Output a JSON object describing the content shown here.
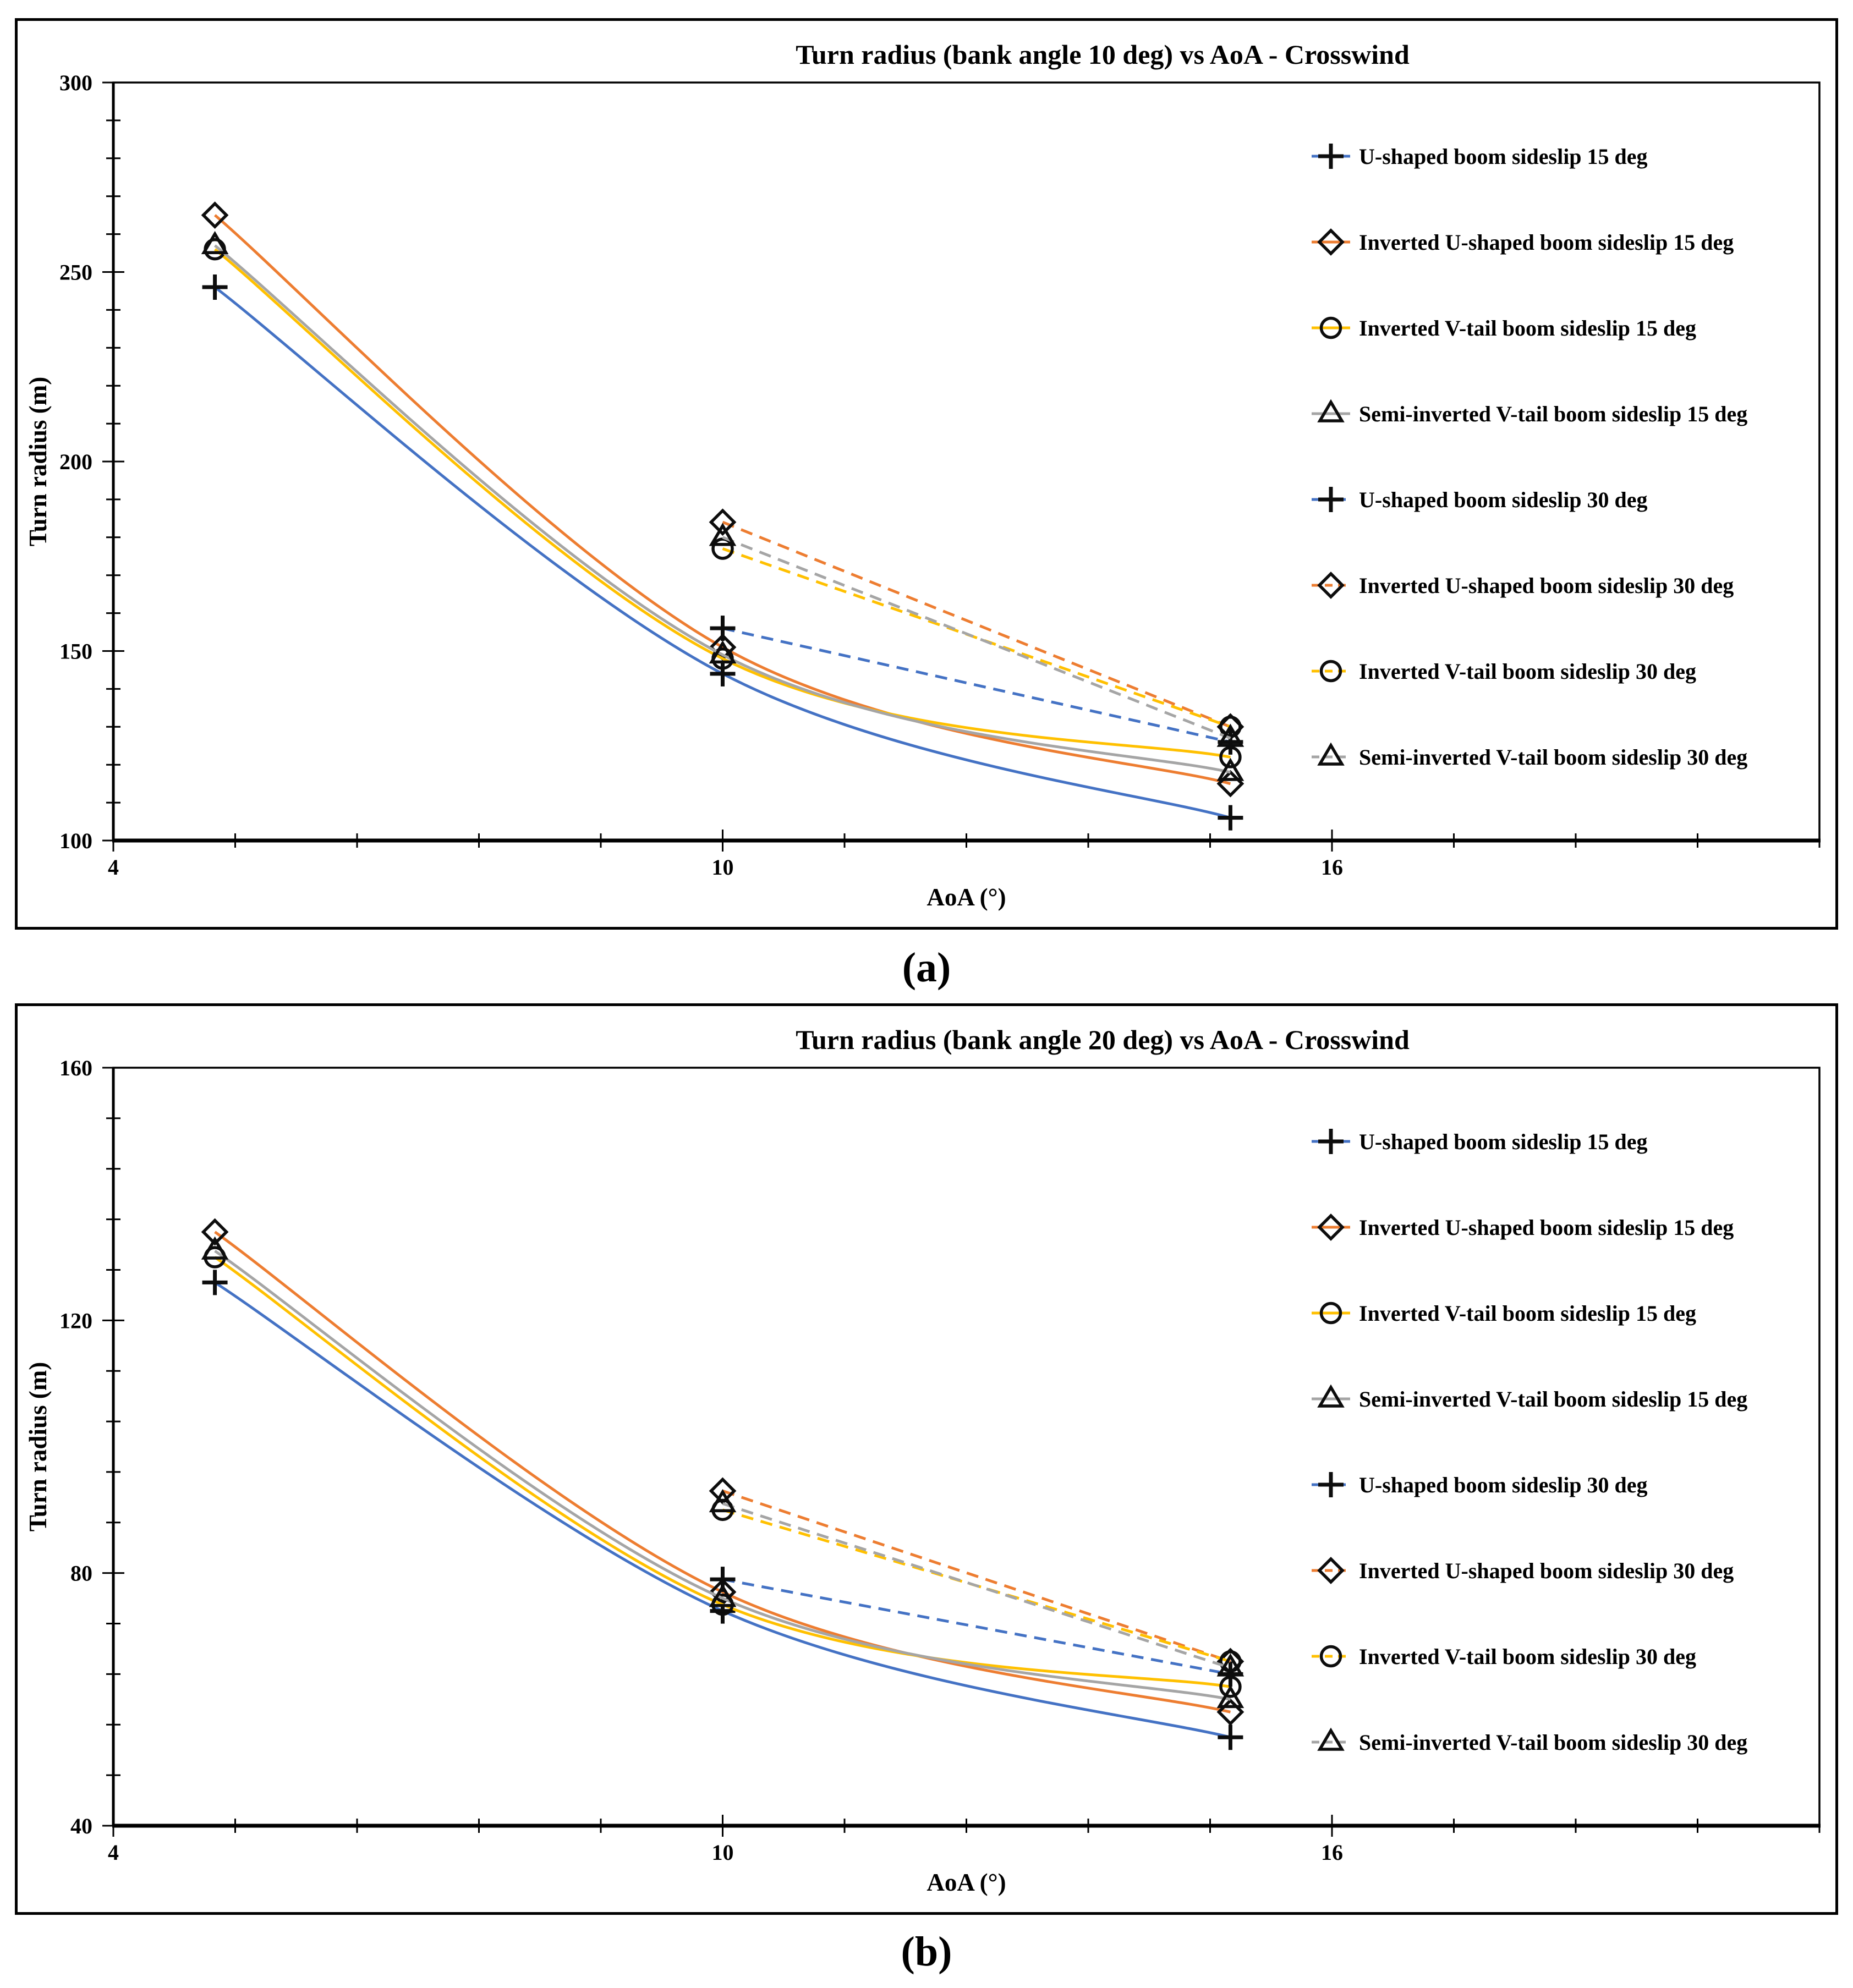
{
  "captions": {
    "a": "(a)",
    "b": "(b)"
  },
  "palette": {
    "blue": "#4472C4",
    "orange": "#ED7D31",
    "yellow": "#FFC000",
    "gray": "#A5A5A5",
    "marker_black": "#0d0d0d"
  },
  "chart_data": [
    {
      "type": "line",
      "title": "Turn radius (bank angle 10 deg) vs AoA - Crosswind",
      "xlabel": "AoA (°)",
      "ylabel": "Turn radius (m)",
      "xlim": [
        4,
        20.8
      ],
      "ylim": [
        100,
        300
      ],
      "x_major_ticks": [
        4,
        10,
        16
      ],
      "x_minor_step": 1.2,
      "y_major_step": 50,
      "y_minor_step": 10,
      "grid": false,
      "legend_position": "right-inside",
      "series": [
        {
          "name": "U-shaped boom sideslip 15 deg",
          "color": "#4472C4",
          "line": "solid",
          "marker": "plus",
          "x": [
            5,
            10,
            15
          ],
          "y": [
            246,
            144,
            106
          ]
        },
        {
          "name": "Inverted U-shaped boom sideslip 15 deg",
          "color": "#ED7D31",
          "line": "solid",
          "marker": "diamond",
          "x": [
            5,
            10,
            15
          ],
          "y": [
            265,
            151,
            115
          ]
        },
        {
          "name": "Inverted V-tail boom sideslip 15 deg",
          "color": "#FFC000",
          "line": "solid",
          "marker": "circle",
          "x": [
            5,
            10,
            15
          ],
          "y": [
            256,
            148,
            122
          ]
        },
        {
          "name": "Semi-inverted V-tail boom sideslip 15 deg",
          "color": "#A5A5A5",
          "line": "solid",
          "marker": "triangle",
          "x": [
            5,
            10,
            15
          ],
          "y": [
            257,
            149,
            118
          ]
        },
        {
          "name": "U-shaped boom sideslip 30 deg",
          "color": "#4472C4",
          "line": "dashed",
          "marker": "plus",
          "x": [
            10,
            15
          ],
          "y": [
            156,
            126
          ]
        },
        {
          "name": "Inverted U-shaped boom sideslip 30 deg",
          "color": "#ED7D31",
          "line": "dashed",
          "marker": "diamond",
          "x": [
            10,
            15
          ],
          "y": [
            184,
            130
          ]
        },
        {
          "name": "Inverted V-tail boom sideslip 30 deg",
          "color": "#FFC000",
          "line": "dashed",
          "marker": "circle",
          "x": [
            10,
            15
          ],
          "y": [
            177,
            130
          ]
        },
        {
          "name": "Semi-inverted V-tail boom sideslip 30 deg",
          "color": "#A5A5A5",
          "line": "dashed",
          "marker": "triangle",
          "x": [
            10,
            15
          ],
          "y": [
            180,
            127
          ]
        }
      ]
    },
    {
      "type": "line",
      "title": "Turn radius (bank angle 20 deg) vs AoA - Crosswind",
      "xlabel": "AoA (°)",
      "ylabel": "Turn radius (m)",
      "xlim": [
        4,
        20.8
      ],
      "ylim": [
        40,
        160
      ],
      "x_major_ticks": [
        4,
        10,
        16
      ],
      "x_minor_step": 1.2,
      "y_major_step": 40,
      "y_minor_step": 8,
      "grid": false,
      "legend_position": "right-inside",
      "series": [
        {
          "name": "U-shaped boom sideslip 15 deg",
          "color": "#4472C4",
          "line": "solid",
          "marker": "plus",
          "x": [
            5,
            10,
            15
          ],
          "y": [
            126,
            74,
            54
          ]
        },
        {
          "name": "Inverted U-shaped boom sideslip 15 deg",
          "color": "#ED7D31",
          "line": "solid",
          "marker": "diamond",
          "x": [
            5,
            10,
            15
          ],
          "y": [
            134,
            77,
            58
          ]
        },
        {
          "name": "Inverted V-tail boom sideslip 15 deg",
          "color": "#FFC000",
          "line": "solid",
          "marker": "circle",
          "x": [
            5,
            10,
            15
          ],
          "y": [
            130,
            75,
            62
          ]
        },
        {
          "name": "Semi-inverted V-tail boom sideslip 15 deg",
          "color": "#A5A5A5",
          "line": "solid",
          "marker": "triangle",
          "x": [
            5,
            10,
            15
          ],
          "y": [
            131,
            76,
            60
          ]
        },
        {
          "name": "U-shaped boom sideslip 30 deg",
          "color": "#4472C4",
          "line": "dashed",
          "marker": "plus",
          "x": [
            10,
            15
          ],
          "y": [
            79,
            64
          ]
        },
        {
          "name": "Inverted U-shaped boom sideslip 30 deg",
          "color": "#ED7D31",
          "line": "dashed",
          "marker": "diamond",
          "x": [
            10,
            15
          ],
          "y": [
            93,
            66
          ]
        },
        {
          "name": "Inverted V-tail boom sideslip 30 deg",
          "color": "#FFC000",
          "line": "dashed",
          "marker": "circle",
          "x": [
            10,
            15
          ],
          "y": [
            90,
            66
          ]
        },
        {
          "name": "Semi-inverted V-tail boom sideslip 30 deg",
          "color": "#A5A5A5",
          "line": "dashed",
          "marker": "triangle",
          "x": [
            10,
            15
          ],
          "y": [
            91,
            65
          ]
        }
      ]
    }
  ]
}
